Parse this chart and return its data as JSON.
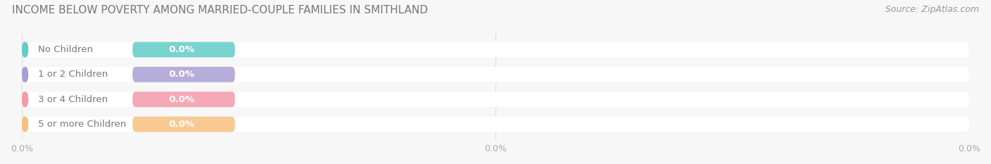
{
  "title": "INCOME BELOW POVERTY AMONG MARRIED-COUPLE FAMILIES IN SMITHLAND",
  "source": "Source: ZipAtlas.com",
  "categories": [
    "No Children",
    "1 or 2 Children",
    "3 or 4 Children",
    "5 or more Children"
  ],
  "values": [
    0.0,
    0.0,
    0.0,
    0.0
  ],
  "bar_colors": [
    "#62ccc7",
    "#a99fd4",
    "#f599aa",
    "#f8c080"
  ],
  "label_text_color": "#888888",
  "background_color": "#f7f7f7",
  "bar_bg_color": "#e8e8e8",
  "bar_white_color": "#ffffff",
  "title_fontsize": 11,
  "source_fontsize": 9,
  "label_fontsize": 9.5,
  "value_fontsize": 9.5,
  "tick_fontsize": 9,
  "tick_color": "#aaaaaa",
  "grid_color": "#dddddd",
  "x_tick_positions": [
    0,
    50,
    100
  ],
  "x_tick_labels": [
    "0.0%",
    "0.0%",
    "0.0%"
  ],
  "xlim": [
    0,
    100
  ],
  "bar_height": 0.62,
  "colored_portion": 22
}
